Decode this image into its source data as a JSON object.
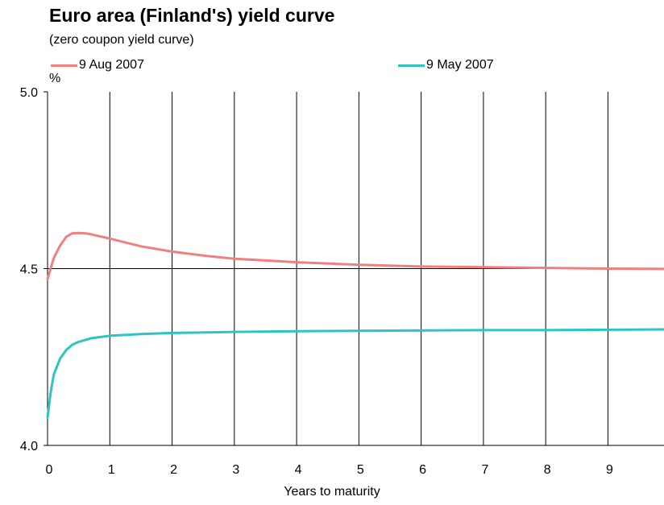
{
  "chart_data": {
    "type": "line",
    "title": "Euro area (Finland's) yield curve",
    "subtitle": "(zero coupon yield curve)",
    "ylabel": "%",
    "xlabel": "Years to maturity",
    "xlim": [
      0,
      9.9
    ],
    "ylim": [
      4.0,
      5.0
    ],
    "x_ticks": [
      0,
      1,
      2,
      3,
      4,
      5,
      6,
      7,
      8,
      9
    ],
    "y_ticks": [
      "4.0",
      "4.5",
      "5.0"
    ],
    "y_tick_values": [
      4.0,
      4.5,
      5.0
    ],
    "grid": "vertical",
    "legend_position": "top",
    "series": [
      {
        "name": "9 Aug 2007",
        "color": "#f08080",
        "x": [
          0,
          0.05,
          0.1,
          0.2,
          0.3,
          0.4,
          0.5,
          0.6,
          0.7,
          0.8,
          1.0,
          1.2,
          1.5,
          2.0,
          2.5,
          3.0,
          3.5,
          4.0,
          5.0,
          6.0,
          7.0,
          8.0,
          9.0,
          9.9
        ],
        "y": [
          4.47,
          4.5,
          4.53,
          4.565,
          4.59,
          4.6,
          4.601,
          4.6,
          4.597,
          4.593,
          4.585,
          4.576,
          4.563,
          4.548,
          4.537,
          4.528,
          4.523,
          4.518,
          4.511,
          4.506,
          4.504,
          4.502,
          4.5,
          4.499
        ]
      },
      {
        "name": "9 May 2007",
        "color": "#2ec4c4",
        "x": [
          0,
          0.05,
          0.1,
          0.2,
          0.3,
          0.4,
          0.5,
          0.7,
          1.0,
          1.5,
          2.0,
          3.0,
          4.0,
          5.0,
          6.0,
          7.0,
          8.0,
          9.0,
          9.9
        ],
        "y": [
          4.08,
          4.15,
          4.2,
          4.245,
          4.27,
          4.285,
          4.293,
          4.303,
          4.31,
          4.315,
          4.318,
          4.321,
          4.323,
          4.324,
          4.325,
          4.326,
          4.326,
          4.327,
          4.328
        ]
      }
    ]
  }
}
